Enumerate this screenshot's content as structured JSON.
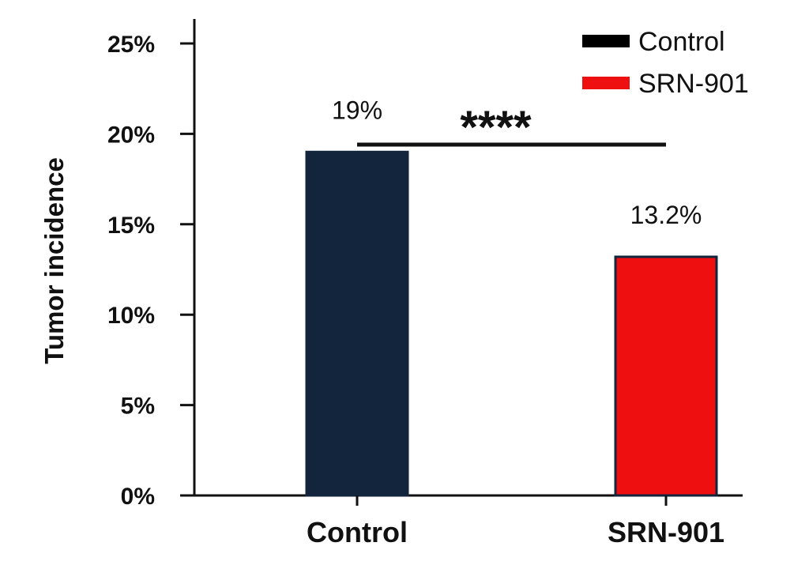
{
  "chart_data": {
    "type": "bar",
    "categories": [
      "Control",
      "SRN-901"
    ],
    "values": [
      19,
      13.2
    ],
    "data_labels": [
      "19%",
      "13.2%"
    ],
    "colors": [
      "#13253d",
      "#ee1010"
    ],
    "ylabel": "Tumor incidence",
    "ylim": [
      0,
      25
    ],
    "yticks": [
      0,
      5,
      10,
      15,
      20,
      25
    ],
    "ytick_labels": [
      "0%",
      "5%",
      "10%",
      "15%",
      "20%",
      "25%"
    ],
    "grid": false,
    "legend": {
      "position": "top-right",
      "entries": [
        {
          "label": "Control",
          "color": "#000000"
        },
        {
          "label": "SRN-901",
          "color": "#ee1010"
        }
      ]
    },
    "significance": {
      "label": "****",
      "between": [
        "Control",
        "SRN-901"
      ]
    }
  }
}
